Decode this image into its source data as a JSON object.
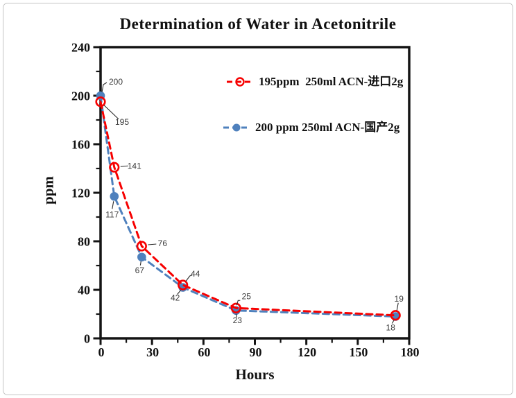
{
  "window": {
    "background": "#ffffff",
    "frame_border_color": "#c4c4c4"
  },
  "chart_data": {
    "type": "line",
    "title": "Determination of Water in Acetonitrile",
    "xlabel": "Hours",
    "ylabel": "ppm",
    "xlim": [
      0,
      180
    ],
    "ylim": [
      0,
      240
    ],
    "x_major_ticks": [
      0,
      30,
      60,
      90,
      120,
      150,
      180
    ],
    "x_minor_ticks": [
      15,
      45,
      75,
      105,
      135,
      165
    ],
    "y_major_ticks": [
      0,
      40,
      80,
      120,
      160,
      200,
      240
    ],
    "y_minor_ticks": [
      20,
      60,
      100,
      140,
      180,
      220
    ],
    "grid": false,
    "legend_position": "inside-top-right",
    "axis_color": "#141414",
    "tick_label_color": "#101010",
    "data_label_color": "#3a3a3a",
    "data_labels_shown": true,
    "series": [
      {
        "name": "195ppm  250ml ACN-进口2g",
        "color": "#f60000",
        "marker": "open-circle",
        "line_style": "dashed",
        "x": [
          0,
          8,
          24,
          48,
          79,
          172
        ],
        "values": [
          195,
          141,
          76,
          44,
          25,
          19
        ]
      },
      {
        "name": "200 ppm 250ml ACN-国产2g",
        "color": "#4f81bd",
        "marker": "filled-circle",
        "line_style": "dashed",
        "x": [
          0,
          8,
          24,
          48,
          79,
          172
        ],
        "values": [
          200,
          117,
          67,
          42,
          23,
          18
        ]
      }
    ]
  }
}
